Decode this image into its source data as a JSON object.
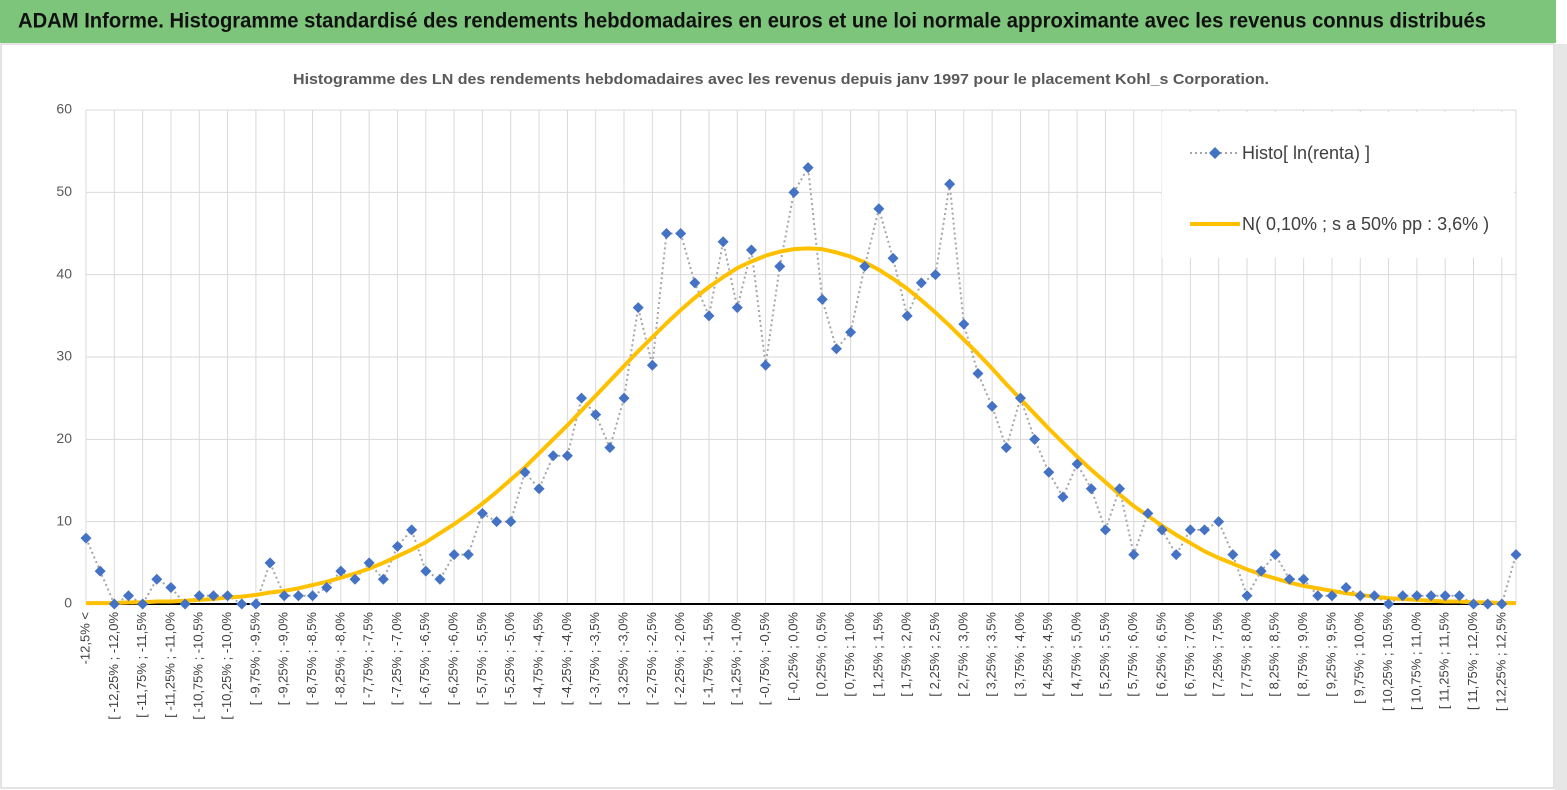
{
  "header": {
    "title": "ADAM Informe. Histogramme standardisé des rendements hebdomadaires en euros et une loi normale approximante avec les revenus connus distribués"
  },
  "chart_data": {
    "type": "line",
    "title": "Histogramme  des LN des rendements hebdomadaires avec les revenus depuis janv 1997  pour le placement Kohl_s Corporation.",
    "categories": [
      "-12,5% <",
      null,
      "[ -12,25% ; -12,0%",
      null,
      "[ -11,75% ; -11,5%",
      null,
      "[ -11,25% ; -11,0%",
      null,
      "[ -10,75% ; -10,5%",
      null,
      "[ -10,25% ; -10,0%",
      null,
      "[ -9,75% ; -9,5%",
      null,
      "[ -9,25% ; -9,0%",
      null,
      "[ -8,75% ; -8,5%",
      null,
      "[ -8,25% ; -8,0%",
      null,
      "[ -7,75% ; -7,5%",
      null,
      "[ -7,25% ; -7,0%",
      null,
      "[ -6,75% ; -6,5%",
      null,
      "[ -6,25% ; -6,0%",
      null,
      "[ -5,75% ; -5,5%",
      null,
      "[ -5,25% ; -5,0%",
      null,
      "[ -4,75% ; -4,5%",
      null,
      "[ -4,25% ; -4,0%",
      null,
      "[ -3,75% ; -3,5%",
      null,
      "[ -3,25% ; -3,0%",
      null,
      "[ -2,75% ; -2,5%",
      null,
      "[ -2,25% ; -2,0%",
      null,
      "[ -1,75% ; -1,5%",
      null,
      "[ -1,25% ; -1,0%",
      null,
      "[ -0,75% ; -0,5%",
      null,
      "[ -0,25% ; 0,0%",
      null,
      "[ 0,25% ; 0,5%",
      null,
      "[ 0,75% ; 1,0%",
      null,
      "[ 1,25% ; 1,5%",
      null,
      "[ 1,75% ; 2,0%",
      null,
      "[ 2,25% ; 2,5%",
      null,
      "[ 2,75% ; 3,0%",
      null,
      "[ 3,25% ; 3,5%",
      null,
      "[ 3,75% ; 4,0%",
      null,
      "[ 4,25% ; 4,5%",
      null,
      "[ 4,75% ; 5,0%",
      null,
      "[ 5,25% ; 5,5%",
      null,
      "[ 5,75% ; 6,0%",
      null,
      "[ 6,25% ; 6,5%",
      null,
      "[ 6,75% ; 7,0%",
      null,
      "[ 7,25% ; 7,5%",
      null,
      "[ 7,75% ; 8,0%",
      null,
      "[ 8,25% ; 8,5%",
      null,
      "[ 8,75% ; 9,0%",
      null,
      "[ 9,25% ; 9,5%",
      null,
      "[ 9,75% ; 10,0%",
      null,
      "[ 10,25% ; 10,5%",
      null,
      "[ 10,75% ; 11,0%",
      null,
      "[ 11,25% ; 11,5%",
      null,
      "[ 11,75% ; 12,0%",
      null,
      "[ 12,25% ; 12,5%",
      null
    ],
    "series": [
      {
        "name": "Histo[ ln(renta) ]",
        "color": "#4472c4",
        "line_color": "#a6a6a6",
        "values": [
          8,
          4,
          0,
          1,
          0,
          3,
          2,
          0,
          1,
          1,
          1,
          0,
          0,
          5,
          1,
          1,
          1,
          2,
          4,
          3,
          5,
          3,
          7,
          9,
          4,
          3,
          6,
          6,
          11,
          10,
          10,
          16,
          14,
          18,
          18,
          25,
          23,
          19,
          25,
          36,
          29,
          45,
          45,
          39,
          35,
          44,
          36,
          43,
          29,
          41,
          50,
          53,
          37,
          31,
          33,
          41,
          48,
          42,
          35,
          39,
          40,
          51,
          34,
          28,
          24,
          19,
          25,
          20,
          16,
          13,
          17,
          14,
          9,
          14,
          6,
          11,
          9,
          6,
          9,
          9,
          10,
          6,
          1,
          4,
          6,
          3,
          3,
          1,
          1,
          2,
          1,
          1,
          0,
          1,
          1,
          1,
          1,
          1,
          0,
          0,
          0,
          6
        ]
      },
      {
        "name": "N( 0,10% ; s a 50% pp : 3,6% )",
        "color": "#ffc000",
        "values": [
          0.1,
          0.1,
          0.1,
          0.2,
          0.2,
          0.3,
          0.3,
          0.4,
          0.5,
          0.6,
          0.8,
          0.9,
          1.1,
          1.4,
          1.6,
          1.9,
          2.3,
          2.7,
          3.2,
          3.7,
          4.3,
          5.0,
          5.8,
          6.6,
          7.5,
          8.6,
          9.7,
          10.9,
          12.2,
          13.6,
          15.1,
          16.6,
          18.3,
          20.0,
          21.7,
          23.5,
          25.3,
          27.1,
          28.9,
          30.7,
          32.4,
          34.1,
          35.7,
          37.2,
          38.5,
          39.7,
          40.8,
          41.6,
          42.3,
          42.8,
          43.1,
          43.2,
          43.1,
          42.7,
          42.2,
          41.5,
          40.6,
          39.5,
          38.3,
          36.9,
          35.4,
          33.8,
          32.1,
          30.4,
          28.6,
          26.7,
          24.9,
          23.1,
          21.3,
          19.6,
          17.9,
          16.3,
          14.8,
          13.3,
          11.9,
          10.7,
          9.5,
          8.4,
          7.4,
          6.4,
          5.6,
          4.9,
          4.2,
          3.6,
          3.1,
          2.6,
          2.2,
          1.9,
          1.6,
          1.3,
          1.1,
          0.9,
          0.7,
          0.6,
          0.5,
          0.4,
          0.3,
          0.3,
          0.2,
          0.2,
          0.1,
          0.1
        ]
      }
    ],
    "ylim": [
      0,
      60
    ],
    "yticks": [
      0,
      10,
      20,
      30,
      40,
      50,
      60
    ],
    "grid": true,
    "legend": "top-right"
  }
}
